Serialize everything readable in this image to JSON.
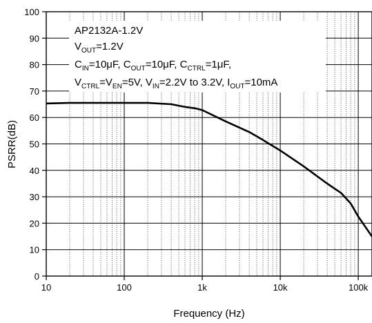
{
  "chart_data": {
    "type": "line",
    "xscale": "log",
    "xlim": [
      10,
      150000
    ],
    "ylim": [
      0,
      100
    ],
    "xlabel": "Frequency (Hz)",
    "ylabel": "PSRR(dB)",
    "grid": true,
    "xticks": [
      {
        "value": 10,
        "label": "10"
      },
      {
        "value": 100,
        "label": "100"
      },
      {
        "value": 1000,
        "label": "1k"
      },
      {
        "value": 10000,
        "label": "10k"
      },
      {
        "value": 100000,
        "label": "100k"
      }
    ],
    "yticks": [
      0,
      10,
      20,
      30,
      40,
      50,
      60,
      70,
      80,
      90,
      100
    ],
    "series": [
      {
        "x": [
          10,
          20,
          50,
          100,
          200,
          400,
          600,
          800,
          1000,
          2000,
          4000,
          6000,
          10000,
          20000,
          40000,
          60000,
          80000,
          100000,
          150000
        ],
        "y": [
          65.3,
          65.5,
          65.5,
          65.5,
          65.5,
          65.0,
          64.0,
          63.5,
          62.8,
          58.5,
          54.5,
          51.5,
          47.5,
          41.5,
          35.0,
          31.5,
          27.5,
          22.5,
          15.0
        ]
      }
    ],
    "annotation": {
      "line1": "AP2132A-1.2V",
      "line2": {
        "v": "V",
        "vsub": "OUT",
        "rest": "=1.2V"
      },
      "line3": {
        "c1": "C",
        "c1sub": "IN",
        "c1val": "=10μF, ",
        "c2": "C",
        "c2sub": "OUT",
        "c2val": "=10μF, ",
        "c3": "C",
        "c3sub": "CTRL",
        "c3val": "=1μF,"
      },
      "line4": {
        "v1": "V",
        "v1sub": "CTRL",
        "eq": "=",
        "v2": "V",
        "v2sub": "EN",
        "v2val": "=5V, ",
        "v3": "V",
        "v3sub": "IN",
        "v3val": "=2.2V to 3.2V, ",
        "i": "I",
        "isub": "OUT",
        "ival": "=10mA"
      }
    }
  }
}
